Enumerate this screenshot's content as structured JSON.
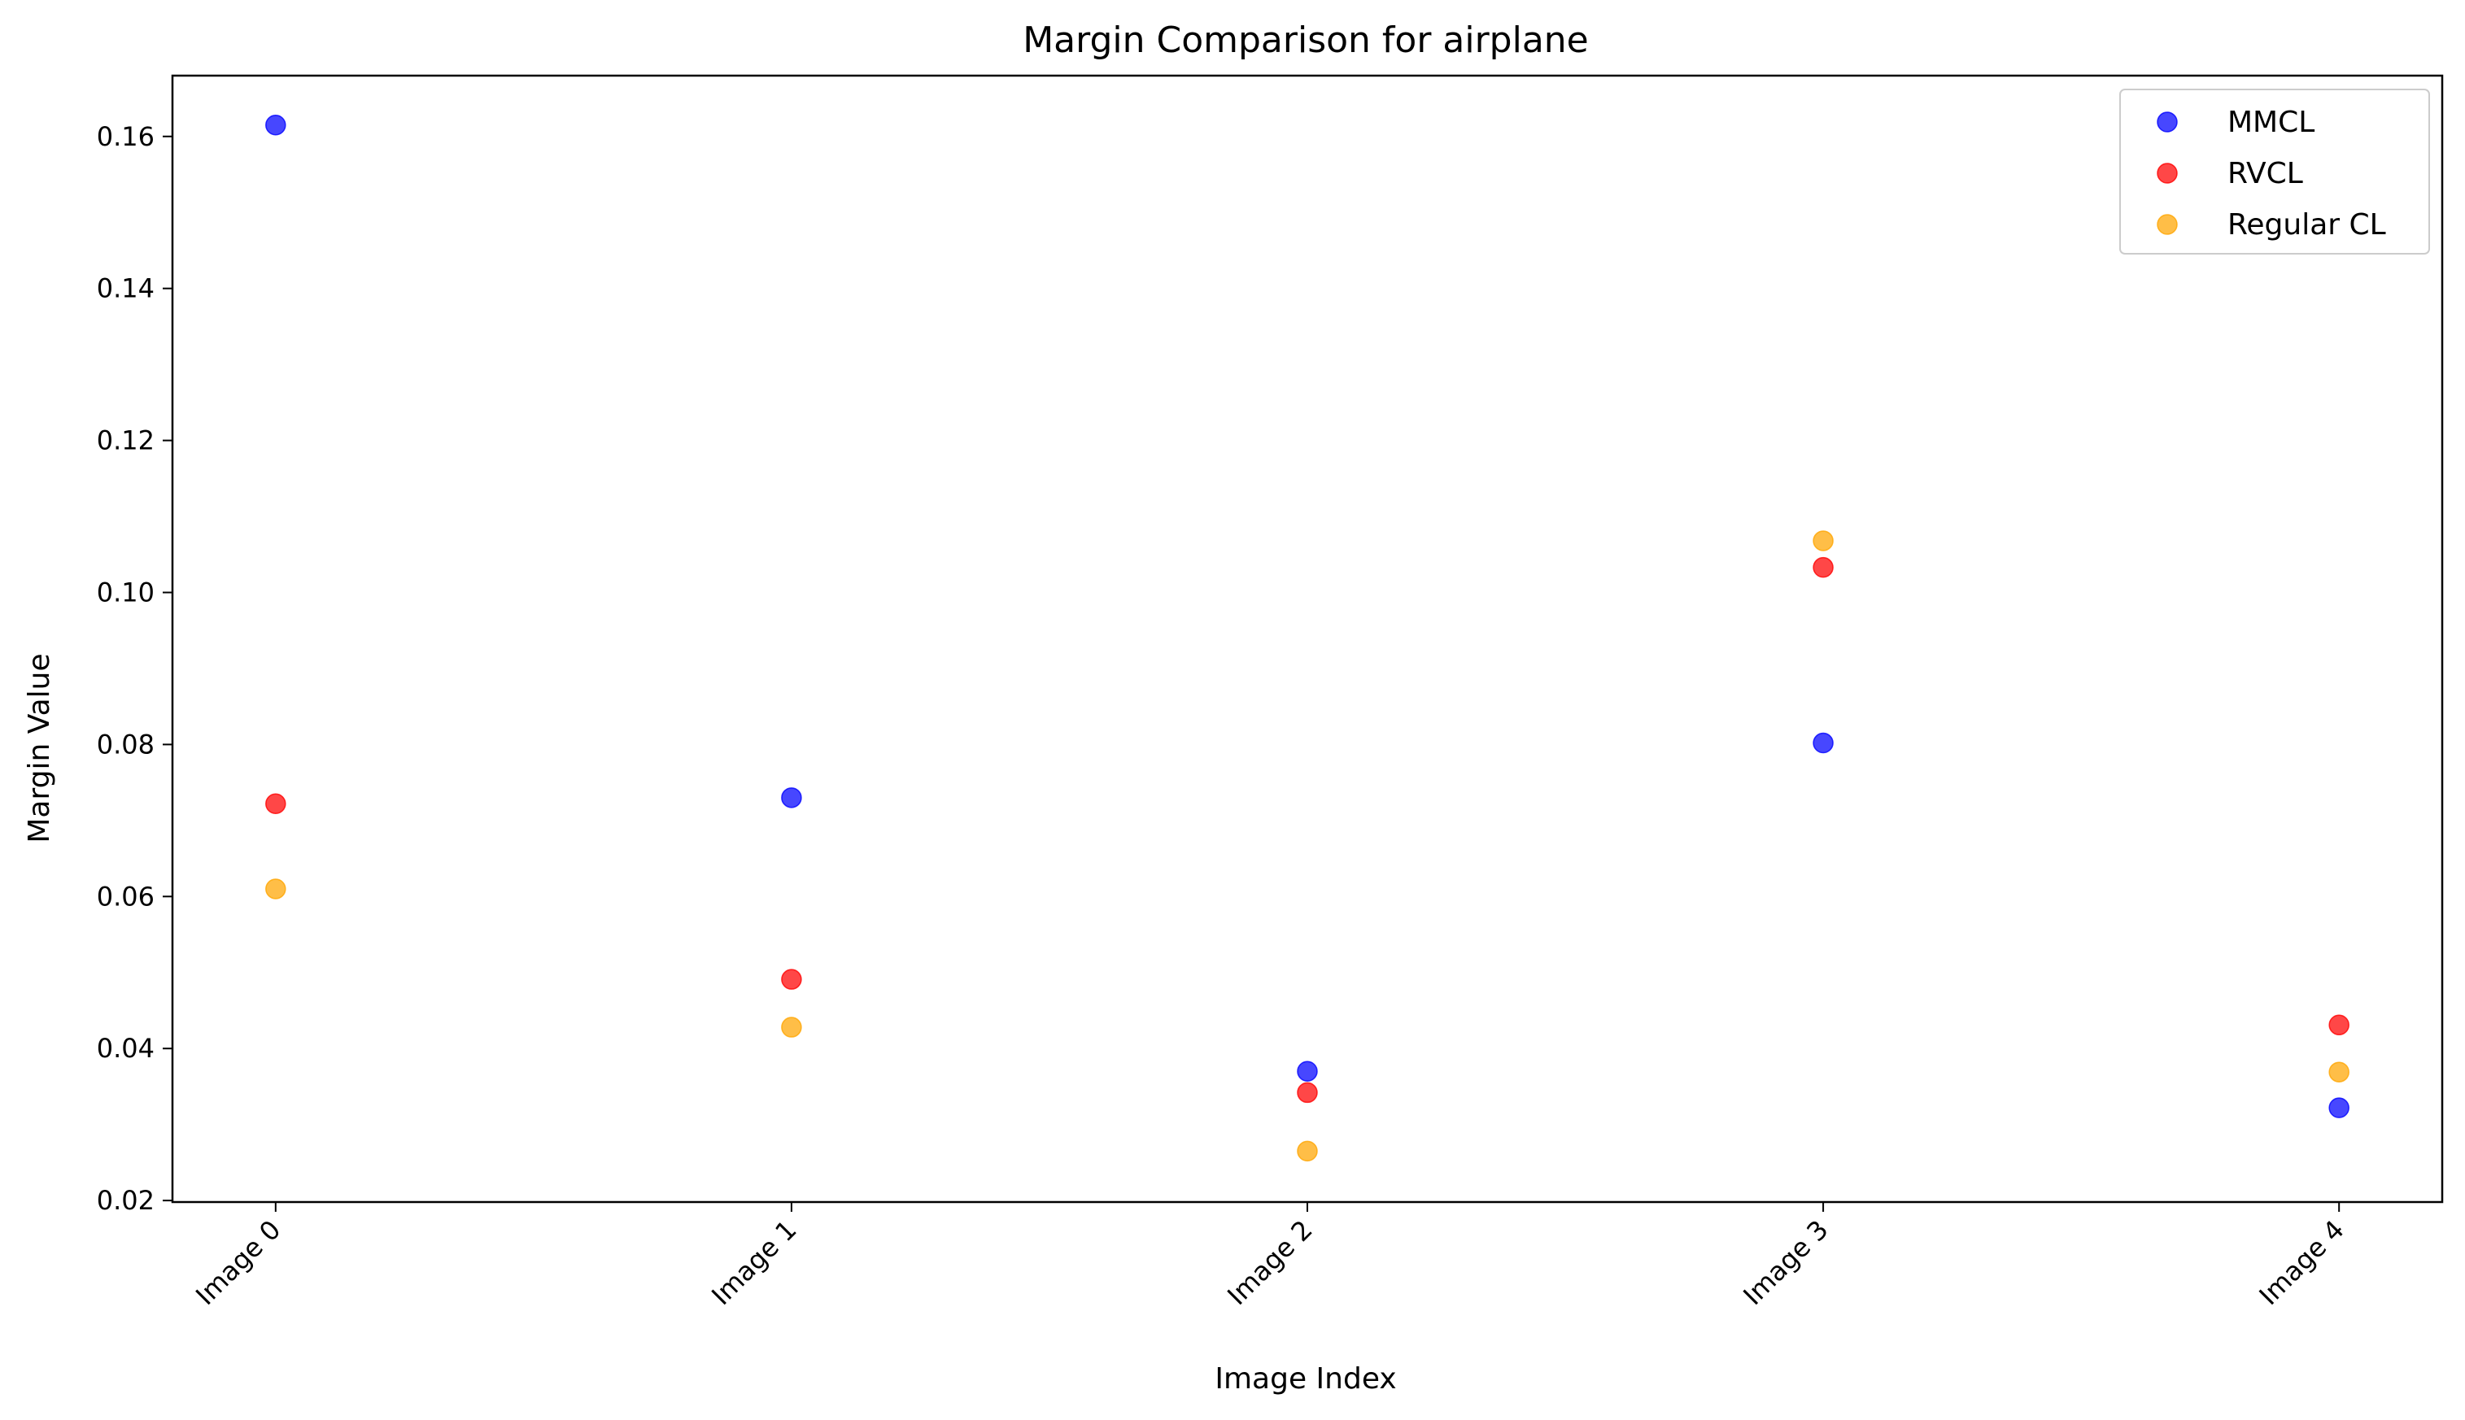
{
  "chart_data": {
    "type": "scatter",
    "title": "Margin Comparison for airplane",
    "xlabel": "Image Index",
    "ylabel": "Margin Value",
    "categories": [
      "Image 0",
      "Image 1",
      "Image 2",
      "Image 3",
      "Image 4"
    ],
    "ylim": [
      0.0198,
      0.168
    ],
    "yticks": [
      0.02,
      0.04,
      0.06,
      0.08,
      0.1,
      0.12,
      0.14,
      0.16
    ],
    "ytick_labels": [
      "0.02",
      "0.04",
      "0.06",
      "0.08",
      "0.10",
      "0.12",
      "0.14",
      "0.16"
    ],
    "grid": false,
    "legend_position": "top-right",
    "series": [
      {
        "name": "MMCL",
        "color": "#0000ff",
        "values": [
          0.1615,
          0.073,
          0.037,
          0.0802,
          0.0322
        ]
      },
      {
        "name": "RVCL",
        "color": "#ff0000",
        "values": [
          0.0722,
          0.0491,
          0.0342,
          0.1033,
          0.0431
        ]
      },
      {
        "name": "Regular CL",
        "color": "#ffa500",
        "values": [
          0.061,
          0.0428,
          0.0265,
          0.1068,
          0.0369
        ]
      }
    ]
  }
}
